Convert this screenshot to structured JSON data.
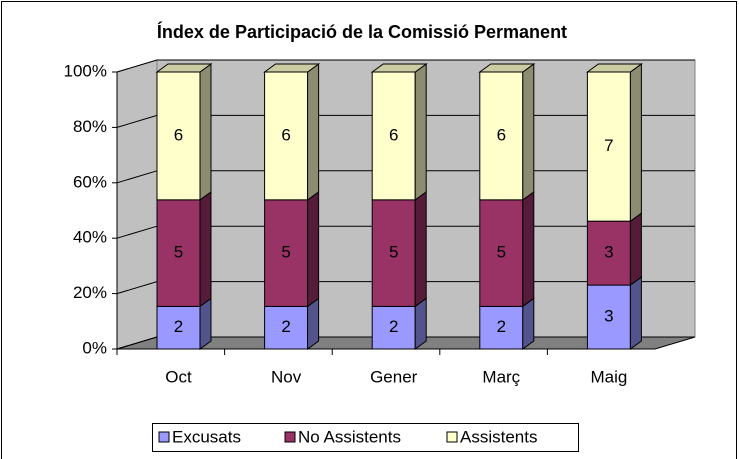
{
  "chart_data": {
    "type": "bar",
    "stacking": "percent",
    "title": "Índex de Participació de la Comissió Permanent",
    "categories": [
      "Oct",
      "Nov",
      "Gener",
      "Març",
      "Maig"
    ],
    "series": [
      {
        "name": "Excusats",
        "color": "#9999ff",
        "values": [
          2,
          2,
          2,
          2,
          3
        ]
      },
      {
        "name": "No Assistents",
        "color": "#993366",
        "values": [
          5,
          5,
          5,
          5,
          3
        ]
      },
      {
        "name": "Assistents",
        "color": "#ffffcc",
        "values": [
          6,
          6,
          6,
          6,
          7
        ]
      }
    ],
    "ylim": [
      0,
      100
    ],
    "yticks": [
      {
        "value": 0,
        "label": "0%"
      },
      {
        "value": 20,
        "label": "20%"
      },
      {
        "value": 40,
        "label": "40%"
      },
      {
        "value": 60,
        "label": "60%"
      },
      {
        "value": 80,
        "label": "80%"
      },
      {
        "value": 100,
        "label": "100%"
      }
    ],
    "grid": true,
    "legend": "bottom"
  }
}
